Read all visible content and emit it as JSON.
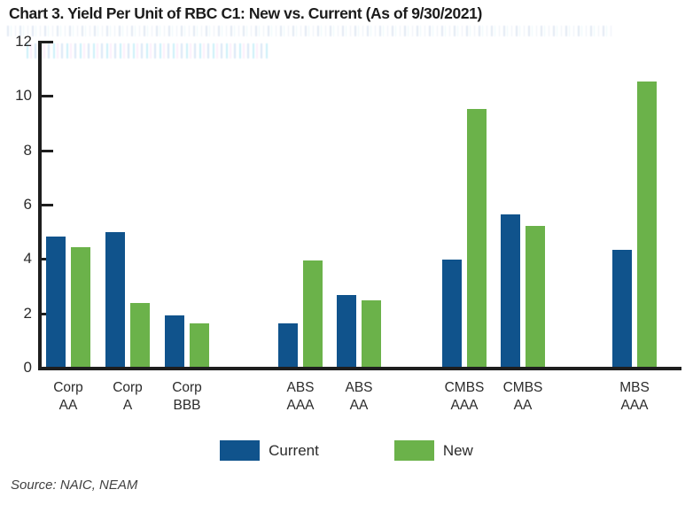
{
  "page": {
    "title": "Chart 3. Yield Per Unit of RBC C1: New vs. Current (As of 9/30/2021)",
    "source": "Source: NAIC, NEAM"
  },
  "legend": {
    "items": [
      {
        "label": "Current",
        "color": "#10538C"
      },
      {
        "label": "New",
        "color": "#6BB24A"
      }
    ]
  },
  "colors": {
    "current_blue": "#10538C",
    "new_green": "#6BB24A",
    "axis": "#1e1e1e",
    "text": "#2b2b2b"
  },
  "chart_data": {
    "type": "bar",
    "title": "Chart 3. Yield Per Unit of RBC C1: New vs. Current (As of 9/30/2021)",
    "source": "Source: NAIC, NEAM",
    "categories": [
      "Corp AA",
      "Corp A",
      "Corp BBB",
      "ABS AAA",
      "ABS AA",
      "CMBS AAA",
      "CMBS AA",
      "MBS AAA"
    ],
    "series": [
      {
        "name": "Current",
        "color": "#10538C",
        "values": [
          4.8,
          4.95,
          1.9,
          1.6,
          2.65,
          3.95,
          5.6,
          4.3
        ]
      },
      {
        "name": "New",
        "color": "#6BB24A",
        "values": [
          4.4,
          2.35,
          1.6,
          3.9,
          2.45,
          9.5,
          5.2,
          10.5
        ]
      }
    ],
    "xlabel": "",
    "ylabel": "",
    "ylim": [
      0,
      12
    ],
    "yticks": [
      0,
      2,
      4,
      6,
      8,
      10,
      12
    ],
    "grid": false,
    "legend_position": "bottom",
    "section_breaks_after": [
      "Corp BBB",
      "ABS AA",
      "CMBS AA"
    ]
  }
}
